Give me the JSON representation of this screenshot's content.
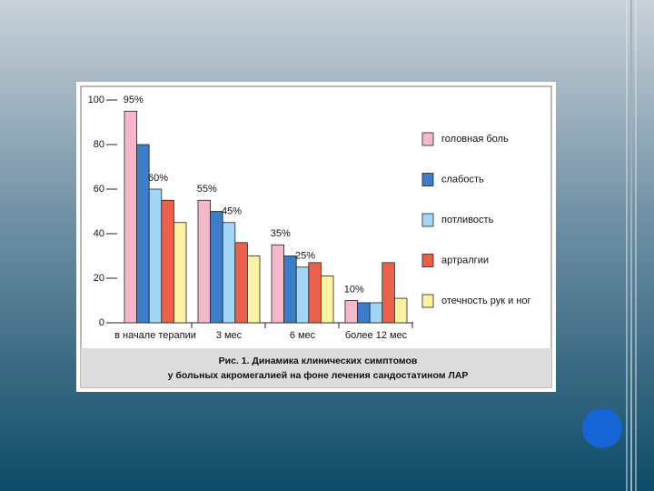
{
  "chart_data": {
    "type": "bar",
    "categories": [
      "в начале терапии",
      "3 мес",
      "6 мес",
      "более 12 мес"
    ],
    "series": [
      {
        "name": "головная боль",
        "color": "#f5b8c9",
        "values": [
          95,
          55,
          35,
          10
        ],
        "value_labels": [
          "95%",
          "55%",
          "35%",
          "10%"
        ]
      },
      {
        "name": "слабость",
        "color": "#3b7dc9",
        "values": [
          80,
          50,
          30,
          9
        ]
      },
      {
        "name": "потливость",
        "color": "#a3d6f6",
        "values": [
          60,
          45,
          25,
          9
        ],
        "value_labels": [
          "60%",
          "45%",
          "25%",
          null
        ]
      },
      {
        "name": "артралгии",
        "color": "#e9614b",
        "values": [
          55,
          36,
          27,
          27
        ]
      },
      {
        "name": "отечность рук и ног",
        "color": "#fcf3a2",
        "values": [
          45,
          30,
          21,
          11
        ]
      }
    ],
    "ylim": [
      0,
      100
    ],
    "yticks": [
      0,
      20,
      40,
      60,
      80,
      100
    ],
    "caption": [
      "Рис. 1. Динамика клинических симптомов",
      "у больных акромегалией на фоне лечения сандостатином ЛАР"
    ]
  }
}
